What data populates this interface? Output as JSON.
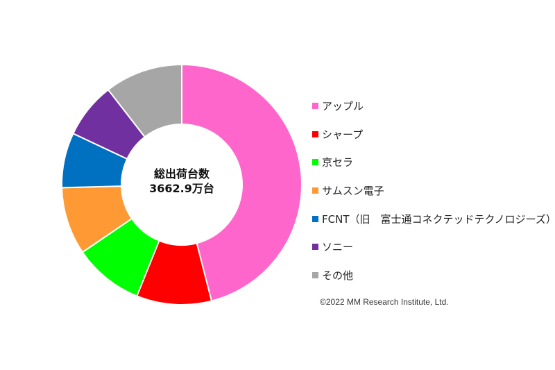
{
  "chart_data": {
    "type": "pie",
    "subtype": "donut",
    "title": "",
    "center_label": {
      "line1": "総出荷台数",
      "line2": "3662.9万台"
    },
    "total_units": "3662.9万台",
    "categories": [
      "アップル",
      "シャープ",
      "京セラ",
      "サムスン電子",
      "FCNT（旧　富士通コネクテッドテクノロジーズ）",
      "ソニー",
      "その他"
    ],
    "values": [
      46.0,
      10.1,
      9.4,
      9.1,
      7.4,
      7.5,
      10.5
    ],
    "unit": "% (estimated share of shipments)",
    "colors": [
      "#ff66cc",
      "#ff0000",
      "#00ff00",
      "#ff9933",
      "#0070c0",
      "#7030a0",
      "#a6a6a6"
    ],
    "start_angle_deg": 0,
    "direction": "clockwise",
    "legend_position": "right"
  },
  "legend": {
    "items": [
      {
        "label": "アップル",
        "color": "#ff66cc"
      },
      {
        "label": "シャープ",
        "color": "#ff0000"
      },
      {
        "label": "京セラ",
        "color": "#00ff00"
      },
      {
        "label": "サムスン電子",
        "color": "#ff9933"
      },
      {
        "label": "FCNT（旧　富士通コネクテッドテクノロジーズ）",
        "color": "#0070c0"
      },
      {
        "label": "ソニー",
        "color": "#7030a0"
      },
      {
        "label": "その他",
        "color": "#a6a6a6"
      }
    ]
  },
  "copyright": "©2022 MM Research Institute, Ltd."
}
